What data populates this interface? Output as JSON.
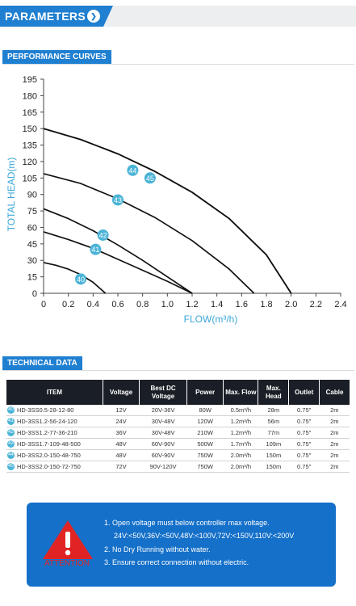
{
  "header": {
    "title": "PARAMETERS"
  },
  "performance": {
    "label": "PERFORMANCE CURVES"
  },
  "chart_data": {
    "type": "line",
    "xlabel": "FLOW(m³/h)",
    "ylabel": "TOTAL HEAD(m)",
    "xlim": [
      0,
      2.4
    ],
    "ylim": [
      0,
      195
    ],
    "xticks": [
      "0",
      "0.2",
      "0.4",
      "0.6",
      "0.8",
      "1.0",
      "1.2",
      "1.4",
      "1.6",
      "1.8",
      "2.0",
      "2.2",
      "2.4"
    ],
    "yticks": [
      "0",
      "15",
      "30",
      "45",
      "60",
      "75",
      "90",
      "105",
      "120",
      "135",
      "150",
      "165",
      "180",
      "195"
    ],
    "grid": false,
    "series": [
      {
        "name": "40",
        "x": [
          0,
          0.1,
          0.2,
          0.3,
          0.4,
          0.5
        ],
        "y": [
          28,
          25.5,
          22,
          17,
          10,
          0
        ],
        "label_at": [
          0.3,
          13
        ]
      },
      {
        "name": "41",
        "x": [
          0,
          0.2,
          0.4,
          0.6,
          0.8,
          1.0,
          1.2
        ],
        "y": [
          56,
          49,
          41,
          31,
          21,
          11,
          0
        ],
        "label_at": [
          0.42,
          40
        ]
      },
      {
        "name": "42",
        "x": [
          0,
          0.2,
          0.4,
          0.6,
          0.8,
          1.0,
          1.2
        ],
        "y": [
          77,
          68,
          57,
          44,
          30,
          15,
          0
        ],
        "label_at": [
          0.48,
          53
        ]
      },
      {
        "name": "43",
        "x": [
          0,
          0.3,
          0.6,
          0.9,
          1.2,
          1.5,
          1.7
        ],
        "y": [
          109,
          100,
          86,
          69,
          48,
          22,
          0
        ],
        "label_at": [
          0.6,
          85
        ]
      },
      {
        "name": "44",
        "x": [
          0,
          0.3,
          0.6,
          0.9,
          1.2,
          1.5,
          1.8,
          2.0
        ],
        "y": [
          150,
          140,
          127,
          111,
          92,
          68,
          35,
          0
        ],
        "label_at": [
          0.72,
          112
        ]
      },
      {
        "name": "45",
        "x": [
          0,
          0.3,
          0.6,
          0.9,
          1.2,
          1.5,
          1.8,
          2.0
        ],
        "y": [
          150,
          140,
          127,
          111,
          92,
          68,
          35,
          0
        ],
        "label_at": [
          0.86,
          105
        ]
      }
    ]
  },
  "technical": {
    "label": "TECHNICAL DATA"
  },
  "table": {
    "headers": [
      "ITEM",
      "Voltage",
      "Best DC Voltage",
      "Power",
      "Max. Flow",
      "Max. Head",
      "Outlet",
      "Cable"
    ],
    "rows": [
      {
        "num": "40",
        "cells": [
          "HD-3SS0.5-28-12-80",
          "12V",
          "20V-36V",
          "80W",
          "0.5m³/h",
          "28m",
          "0.75\"",
          "2m"
        ]
      },
      {
        "num": "41",
        "cells": [
          "HD-3SS1.2-56-24-120",
          "24V",
          "30V-48V",
          "120W",
          "1.2m³/h",
          "56m",
          "0.75\"",
          "2m"
        ]
      },
      {
        "num": "42",
        "cells": [
          "HD-3SS1.2-77-36-210",
          "36V",
          "30V-48V",
          "210W",
          "1.2m³/h",
          "77m",
          "0.75\"",
          "2m"
        ]
      },
      {
        "num": "43",
        "cells": [
          "HD-3SS1.7-109-48-500",
          "48V",
          "60V-90V",
          "500W",
          "1.7m³/h",
          "109m",
          "0.75\"",
          "2m"
        ]
      },
      {
        "num": "44",
        "cells": [
          "HD-3SS2.0-150-48-750",
          "48V",
          "60V-90V",
          "750W",
          "2.0m³/h",
          "150m",
          "0.75\"",
          "2m"
        ]
      },
      {
        "num": "45",
        "cells": [
          "HD-3SS2.0-150-72-750",
          "72V",
          "90V-120V",
          "750W",
          "2.0m³/h",
          "150m",
          "0.75\"",
          "2m"
        ]
      }
    ]
  },
  "attention": {
    "label": "ATTENTION",
    "lines": [
      "1. Open voltage must below controller max voltage.",
      "24V:<50V,36V:<50V,48V:<100V,72V:<150V,110V:<200V",
      "2. No Dry Running without water.",
      "3. Ensure correct connection without electric."
    ]
  },
  "colors": {
    "accent": "#1f7fd0",
    "curve_label": "#4ab3d6",
    "axis_title": "#3aa6d8",
    "table_header": "#1a1f27",
    "attention_bg": "#1570c9",
    "warning_red": "#e02424"
  }
}
